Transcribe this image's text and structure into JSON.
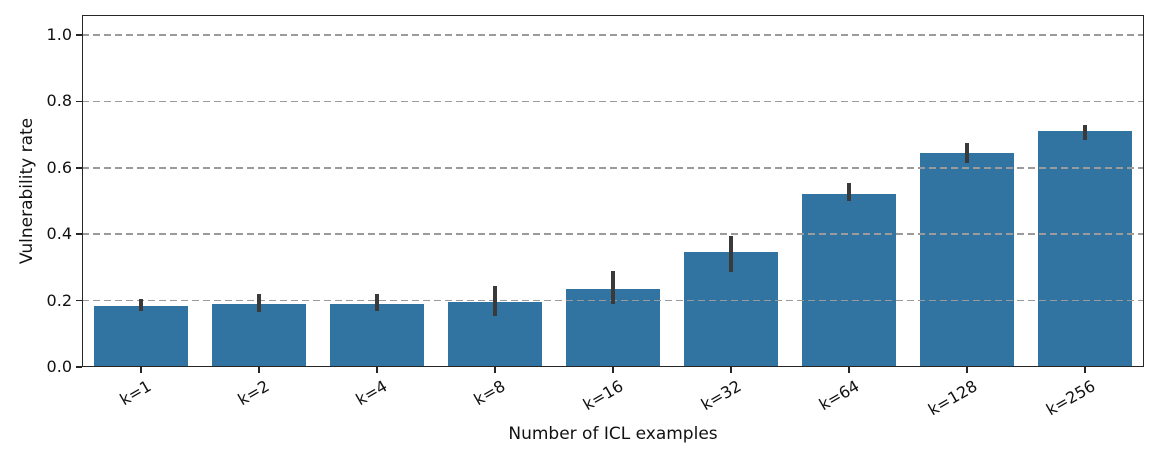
{
  "chart_data": {
    "type": "bar",
    "title": "",
    "xlabel": "Number of ICL examples",
    "ylabel": "Vulnerability rate",
    "categories": [
      "k=1",
      "k=2",
      "k=4",
      "k=8",
      "k=16",
      "k=32",
      "k=64",
      "k=128",
      "k=256"
    ],
    "values": [
      0.185,
      0.19,
      0.19,
      0.195,
      0.235,
      0.345,
      0.52,
      0.645,
      0.71
    ],
    "error_low": [
      0.17,
      0.165,
      0.17,
      0.155,
      0.19,
      0.285,
      0.5,
      0.615,
      0.685
    ],
    "error_high": [
      0.205,
      0.22,
      0.22,
      0.245,
      0.29,
      0.395,
      0.555,
      0.675,
      0.73
    ],
    "yticks": [
      0.0,
      0.2,
      0.4,
      0.6,
      0.8,
      1.0
    ],
    "ytick_labels": [
      "0.0",
      "0.2",
      "0.4",
      "0.6",
      "0.8",
      "1.0"
    ],
    "ylim": [
      0,
      1.06
    ],
    "grid": "horizontal dashed, drawn above bars",
    "legend": "none",
    "x_tick_rotation_deg": 30,
    "colors": {
      "bar": "#3174a1",
      "error_bar": "#3a3a3a",
      "gridline": "#9b9b9b",
      "axis": "#262626",
      "text": "#111111",
      "background": "#ffffff"
    }
  }
}
